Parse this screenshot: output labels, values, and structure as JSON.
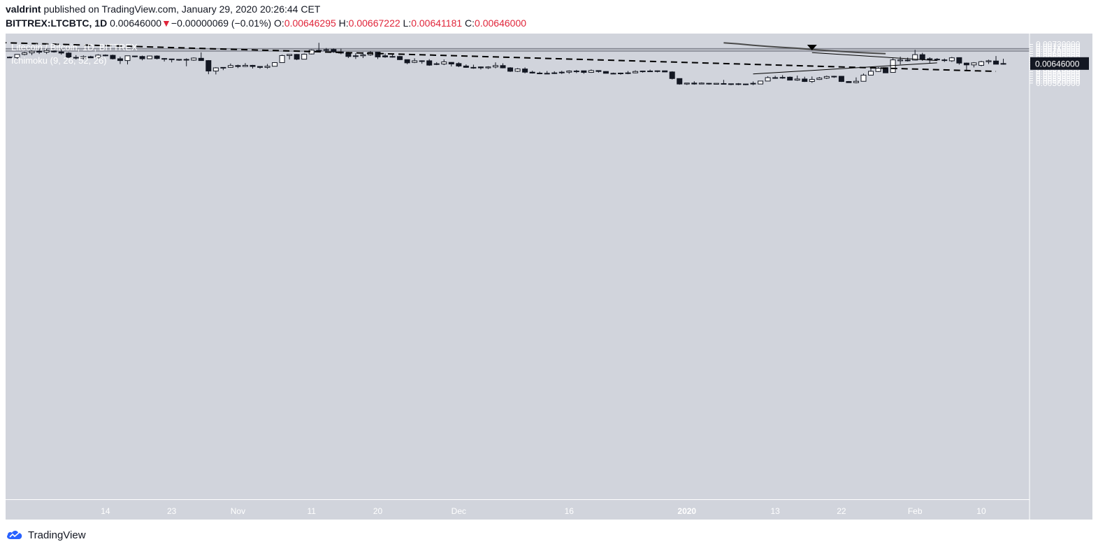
{
  "header": {
    "author": "valdrint",
    "published_text": " published on TradingView.com, January 29, 2020 20:26:44 CET",
    "symbol": "BITTREX:LTCBTC, 1D",
    "last": "0.00646000",
    "change": "−0.00000069 (−0.01%)",
    "o_label": "O:",
    "o_val": "0.00646295",
    "h_label": "H:",
    "h_val": "0.00667222",
    "l_label": "L:",
    "l_val": "0.00641181",
    "c_label": "C:",
    "c_val": "0.00646000",
    "down_arrow": "down-triangle-icon"
  },
  "legend": {
    "title": "Litecoin / Bitcoin, 1D, BITTREX",
    "indicator": "Ichimoku (9, 26, 52, 26)"
  },
  "footer": {
    "brand": "TradingView",
    "logo": "tradingview-logo-icon"
  },
  "colors": {
    "plot_bg": "#d1d4dc",
    "zone": "#b2b5be",
    "candle_up": "#ffffff",
    "candle_down": "#131722",
    "last_price_bg": "#131722",
    "indicator_line": "#4a4a4a"
  },
  "chart_data": {
    "type": "candlestick",
    "title": "Litecoin / Bitcoin, 1D, BITTREX",
    "ylim": [
      0.00551,
      0.00737
    ],
    "y_ticks": [
      0.0056,
      0.0057,
      0.0058,
      0.0059,
      0.006,
      0.0061,
      0.0062,
      0.0063,
      0.0064,
      0.0065,
      0.0066,
      0.0067,
      0.0068,
      0.0069,
      0.007,
      0.0071,
      0.0072,
      0.0073
    ],
    "y_tick_labels": [
      "0.00560000",
      "0.00570000",
      "0.00580000",
      "0.00590000",
      "0.00600000",
      "0.00610000",
      "0.00620000",
      "0.00630000",
      "0.00640000",
      "0.00650000",
      "0.00660000",
      "0.00670000",
      "0.00680000",
      "0.00690000",
      "0.00700000",
      "0.00710000",
      "0.00720000",
      "0.00730000"
    ],
    "x_range": [
      -7,
      134
    ],
    "x_ticks": [
      {
        "day": 13,
        "label": "14",
        "bold": false
      },
      {
        "day": 22,
        "label": "23",
        "bold": false
      },
      {
        "day": 31,
        "label": "Nov",
        "bold": false
      },
      {
        "day": 41,
        "label": "11",
        "bold": false
      },
      {
        "day": 50,
        "label": "20",
        "bold": false
      },
      {
        "day": 61,
        "label": "Dec",
        "bold": false
      },
      {
        "day": 76,
        "label": "16",
        "bold": false
      },
      {
        "day": 92,
        "label": "2020",
        "bold": true
      },
      {
        "day": 104,
        "label": "13",
        "bold": false
      },
      {
        "day": 113,
        "label": "22",
        "bold": false
      },
      {
        "day": 123,
        "label": "Feb",
        "bold": false
      },
      {
        "day": 132,
        "label": "10",
        "bold": false
      }
    ],
    "last_price_label": "0.00646000",
    "last_price": 0.00646,
    "resistance_zone": [
      0.007,
      0.00712
    ],
    "descending_trendline": [
      [
        -7,
        0.007433
      ],
      [
        134,
        0.006114
      ]
    ],
    "wedge_upper": [
      [
        109,
        0.00694
      ],
      [
        126,
        0.00659
      ]
    ],
    "wedge_lower": [
      [
        101,
        0.006
      ],
      [
        126,
        0.00649
      ]
    ],
    "ichimoku_line": [
      [
        97,
        0.00737
      ],
      [
        99,
        0.00732
      ],
      [
        101,
        0.00726
      ],
      [
        103,
        0.00721
      ],
      [
        105,
        0.00717
      ],
      [
        107,
        0.00713
      ],
      [
        109,
        0.00708
      ],
      [
        111,
        0.00703
      ],
      [
        113,
        0.00699
      ],
      [
        115,
        0.00695
      ],
      [
        117,
        0.00692
      ],
      [
        119,
        0.00689
      ]
    ],
    "annotation_arrow": {
      "day": 109,
      "price": 0.00713
    },
    "candles": [
      [
        0.00674,
        0.00674,
        0.00677,
        0.00671
      ],
      [
        0.00672,
        0.00686,
        0.00687,
        0.00664
      ],
      [
        0.00686,
        0.00693,
        0.00697,
        0.00682
      ],
      [
        0.00693,
        0.007,
        0.00705,
        0.00683
      ],
      [
        0.007,
        0.00696,
        0.00709,
        0.00688
      ],
      [
        0.00696,
        0.00703,
        0.0071,
        0.00688
      ],
      [
        0.00701,
        0.00697,
        0.00708,
        0.00694
      ],
      [
        0.00697,
        0.00692,
        0.0071,
        0.00685
      ],
      [
        0.00692,
        0.00673,
        0.00696,
        0.00671
      ],
      [
        0.00673,
        0.0067,
        0.00683,
        0.00664
      ],
      [
        0.0067,
        0.00676,
        0.00682,
        0.00664
      ],
      [
        0.00676,
        0.00671,
        0.0068,
        0.0067
      ],
      [
        0.00671,
        0.00683,
        0.00687,
        0.00669
      ],
      [
        0.00683,
        0.00682,
        0.00686,
        0.00678
      ],
      [
        0.00682,
        0.00667,
        0.00685,
        0.00664
      ],
      [
        0.00667,
        0.00659,
        0.00676,
        0.00644
      ],
      [
        0.00659,
        0.0068,
        0.00681,
        0.00642
      ],
      [
        0.00679,
        0.00677,
        0.00679,
        0.00673
      ],
      [
        0.00677,
        0.00667,
        0.00681,
        0.0066
      ],
      [
        0.00667,
        0.00679,
        0.00681,
        0.00666
      ],
      [
        0.00679,
        0.00668,
        0.00682,
        0.00664
      ],
      [
        0.00668,
        0.00666,
        0.0067,
        0.00655
      ],
      [
        0.00666,
        0.00663,
        0.00667,
        0.00651
      ],
      [
        0.00663,
        0.00664,
        0.00665,
        0.00658
      ],
      [
        0.00664,
        0.00661,
        0.00669,
        0.00634
      ],
      [
        0.00661,
        0.0067,
        0.00673,
        0.00658
      ],
      [
        0.00669,
        0.00659,
        0.00695,
        0.00659
      ],
      [
        0.00659,
        0.00613,
        0.00661,
        0.00599
      ],
      [
        0.00613,
        0.00627,
        0.0063,
        0.00598
      ],
      [
        0.00627,
        0.00629,
        0.0063,
        0.00617
      ],
      [
        0.00629,
        0.00637,
        0.00646,
        0.00627
      ],
      [
        0.00637,
        0.00633,
        0.00641,
        0.00626
      ],
      [
        0.00633,
        0.00638,
        0.00648,
        0.00631
      ],
      [
        0.00638,
        0.00633,
        0.0064,
        0.00624
      ],
      [
        0.00633,
        0.00629,
        0.00633,
        0.00623
      ],
      [
        0.00629,
        0.00634,
        0.00644,
        0.00623
      ],
      [
        0.00634,
        0.0065,
        0.00652,
        0.00634
      ],
      [
        0.0065,
        0.00681,
        0.00685,
        0.00649
      ],
      [
        0.00681,
        0.00686,
        0.00687,
        0.00664
      ],
      [
        0.00686,
        0.00665,
        0.00688,
        0.00661
      ],
      [
        0.00665,
        0.00687,
        0.0069,
        0.00668
      ],
      [
        0.00688,
        0.00705,
        0.00708,
        0.00686
      ],
      [
        0.00704,
        0.00704,
        0.00737,
        0.00703
      ],
      [
        0.00704,
        0.00707,
        0.00714,
        0.00701
      ],
      [
        0.00708,
        0.00697,
        0.00712,
        0.00693
      ],
      [
        0.00697,
        0.00692,
        0.00711,
        0.00687
      ],
      [
        0.00693,
        0.00677,
        0.00697,
        0.0067
      ],
      [
        0.00677,
        0.0068,
        0.00692,
        0.00666
      ],
      [
        0.0068,
        0.00684,
        0.00696,
        0.0067
      ],
      [
        0.00684,
        0.00695,
        0.00701,
        0.0068
      ],
      [
        0.00696,
        0.00675,
        0.00696,
        0.00666
      ],
      [
        0.0068,
        0.00675,
        0.0069,
        0.00671
      ],
      [
        0.00676,
        0.00677,
        0.00686,
        0.00672
      ],
      [
        0.00677,
        0.00663,
        0.0068,
        0.00661
      ],
      [
        0.00663,
        0.00649,
        0.00664,
        0.00643
      ],
      [
        0.00651,
        0.00658,
        0.00669,
        0.00648
      ],
      [
        0.00658,
        0.00657,
        0.0066,
        0.00645
      ],
      [
        0.00658,
        0.00639,
        0.00665,
        0.00636
      ],
      [
        0.00643,
        0.00645,
        0.00652,
        0.00639
      ],
      [
        0.00644,
        0.00653,
        0.00664,
        0.00639
      ],
      [
        0.00651,
        0.00644,
        0.00652,
        0.00633
      ],
      [
        0.00646,
        0.00635,
        0.00652,
        0.0063
      ],
      [
        0.00635,
        0.00629,
        0.00642,
        0.00627
      ],
      [
        0.00629,
        0.00629,
        0.00641,
        0.00623
      ],
      [
        0.00631,
        0.00627,
        0.00633,
        0.0062
      ],
      [
        0.00627,
        0.00631,
        0.00634,
        0.00622
      ],
      [
        0.00631,
        0.00637,
        0.00651,
        0.00625
      ],
      [
        0.00637,
        0.00627,
        0.00647,
        0.00625
      ],
      [
        0.00627,
        0.00612,
        0.0063,
        0.00609
      ],
      [
        0.00612,
        0.00622,
        0.00626,
        0.00609
      ],
      [
        0.00622,
        0.00608,
        0.00629,
        0.00603
      ],
      [
        0.00608,
        0.00604,
        0.00614,
        0.00602
      ],
      [
        0.00604,
        0.00601,
        0.0061,
        0.00599
      ],
      [
        0.00602,
        0.00603,
        0.00613,
        0.00601
      ],
      [
        0.00603,
        0.00605,
        0.00612,
        0.006
      ],
      [
        0.00605,
        0.00608,
        0.00614,
        0.006
      ],
      [
        0.00608,
        0.00613,
        0.00616,
        0.00601
      ],
      [
        0.00613,
        0.00613,
        0.00618,
        0.00604
      ],
      [
        0.00614,
        0.00607,
        0.00614,
        0.00601
      ],
      [
        0.00607,
        0.00615,
        0.0062,
        0.00605
      ],
      [
        0.00615,
        0.00611,
        0.00612,
        0.00606
      ],
      [
        0.00611,
        0.00603,
        0.00612,
        0.00603
      ],
      [
        0.00603,
        0.00602,
        0.00606,
        0.006
      ],
      [
        0.00602,
        0.00604,
        0.00606,
        0.00597
      ],
      [
        0.00602,
        0.00605,
        0.00613,
        0.00599
      ],
      [
        0.00605,
        0.00611,
        0.00616,
        0.00603
      ],
      [
        0.00611,
        0.00613,
        0.00614,
        0.00606
      ],
      [
        0.00612,
        0.00613,
        0.00619,
        0.00611
      ],
      [
        0.00614,
        0.00613,
        0.00615,
        0.00607
      ],
      [
        0.00614,
        0.00609,
        0.00614,
        0.00608
      ],
      [
        0.00609,
        0.0058,
        0.00612,
        0.00576
      ],
      [
        0.0058,
        0.00556,
        0.0058,
        0.00553
      ],
      [
        0.00556,
        0.0056,
        0.0056,
        0.00552
      ],
      [
        0.0056,
        0.00556,
        0.00568,
        0.00553
      ],
      [
        0.00556,
        0.0056,
        0.00563,
        0.00555
      ],
      [
        0.00559,
        0.00556,
        0.00561,
        0.00553
      ],
      [
        0.00555,
        0.00559,
        0.00559,
        0.00555
      ],
      [
        0.00558,
        0.00556,
        0.00574,
        0.00556
      ],
      [
        0.00555,
        0.00557,
        0.00558,
        0.00551
      ],
      [
        0.00556,
        0.00557,
        0.0056,
        0.00551
      ],
      [
        0.00556,
        0.00555,
        0.00555,
        0.00551
      ],
      [
        0.00556,
        0.00559,
        0.00567,
        0.00551
      ],
      [
        0.00556,
        0.00569,
        0.0057,
        0.00555
      ],
      [
        0.00569,
        0.00584,
        0.0059,
        0.00569
      ],
      [
        0.00584,
        0.00582,
        0.00592,
        0.00579
      ],
      [
        0.00582,
        0.00585,
        0.00595,
        0.00579
      ],
      [
        0.00586,
        0.00573,
        0.00589,
        0.00572
      ],
      [
        0.00573,
        0.00578,
        0.00593,
        0.0057
      ],
      [
        0.00578,
        0.00567,
        0.00588,
        0.00565
      ],
      [
        0.00567,
        0.00576,
        0.00589,
        0.00561
      ],
      [
        0.00576,
        0.00582,
        0.00587,
        0.00574
      ],
      [
        0.00582,
        0.00589,
        0.00593,
        0.00578
      ],
      [
        0.00588,
        0.0059,
        0.00592,
        0.00583
      ],
      [
        0.0059,
        0.00567,
        0.0059,
        0.00565
      ],
      [
        0.00567,
        0.00562,
        0.00569,
        0.00561
      ],
      [
        0.00562,
        0.00568,
        0.00585,
        0.00559
      ],
      [
        0.00568,
        0.00595,
        0.00602,
        0.00567
      ],
      [
        0.00595,
        0.00612,
        0.00629,
        0.00594
      ],
      [
        0.00611,
        0.00625,
        0.0063,
        0.00609
      ],
      [
        0.00628,
        0.00605,
        0.00629,
        0.00604
      ],
      [
        0.00607,
        0.00662,
        0.00669,
        0.00607
      ],
      [
        0.00658,
        0.00662,
        0.00676,
        0.00642
      ],
      [
        0.00661,
        0.00661,
        0.00672,
        0.00655
      ],
      [
        0.00661,
        0.00685,
        0.00706,
        0.00659
      ],
      [
        0.00685,
        0.00665,
        0.00693,
        0.00658
      ],
      [
        0.00667,
        0.00664,
        0.00673,
        0.00648
      ],
      [
        0.00665,
        0.00662,
        0.0067,
        0.00658
      ],
      [
        0.00662,
        0.00661,
        0.00668,
        0.00653
      ],
      [
        0.00658,
        0.00671,
        0.00675,
        0.00653
      ],
      [
        0.00672,
        0.00648,
        0.00673,
        0.00641
      ],
      [
        0.00648,
        0.0064,
        0.0065,
        0.00613
      ],
      [
        0.0064,
        0.00649,
        0.00652,
        0.00629
      ],
      [
        0.00638,
        0.00654,
        0.00658,
        0.00634
      ],
      [
        0.00654,
        0.00658,
        0.00663,
        0.00644
      ],
      [
        0.00657,
        0.00643,
        0.00679,
        0.00643
      ],
      [
        0.00646,
        0.00646,
        0.00667,
        0.00641
      ]
    ]
  }
}
